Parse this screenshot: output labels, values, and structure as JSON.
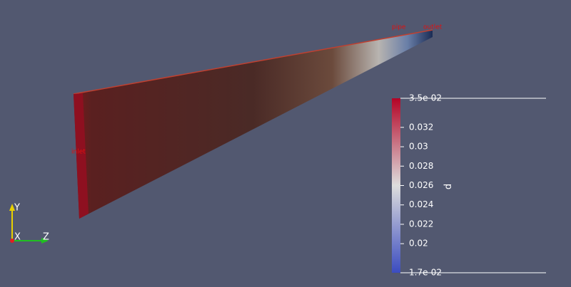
{
  "scene": {
    "labels": {
      "pipe": "pipe",
      "outlet": "outlet",
      "inlet": "inlet"
    }
  },
  "orientation_axes": {
    "x": "X",
    "y": "Y",
    "z": "Z"
  },
  "colorbar": {
    "title": "p",
    "range": [
      0.017,
      0.035
    ],
    "ticks": [
      {
        "value": 0.035,
        "label": "3.5e-02"
      },
      0.032,
      0.03,
      0.028,
      0.026,
      0.024,
      0.022,
      0.02,
      {
        "value": 0.017,
        "label": "1.7e-02"
      }
    ],
    "colors": [
      "#3b4cc0",
      "#dddddd",
      "#b40426"
    ]
  }
}
